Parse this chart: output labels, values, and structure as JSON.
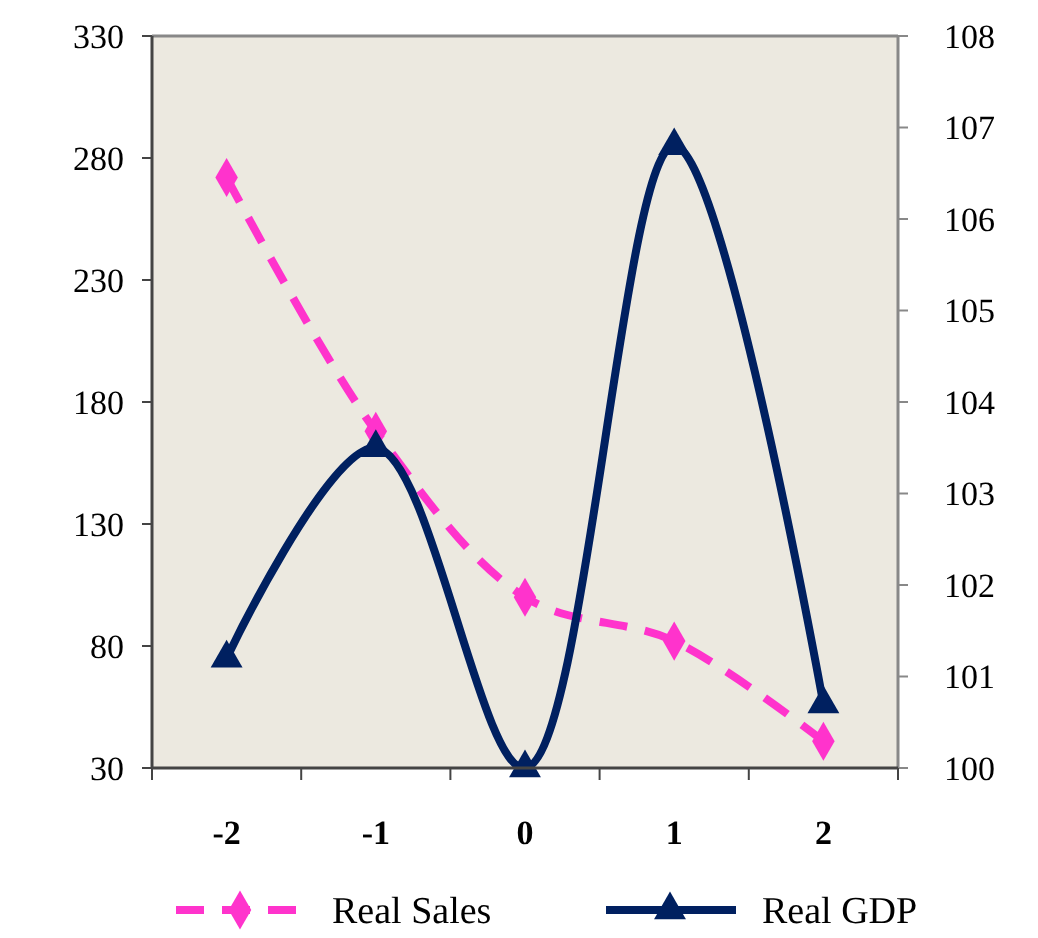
{
  "chart_data": {
    "type": "line",
    "categories": [
      "-2",
      "-1",
      "0",
      "1",
      "2"
    ],
    "series": [
      {
        "name": "Real Sales",
        "color": "#ff33cc",
        "values": [
          272,
          168,
          100,
          82,
          41
        ],
        "marker": "diamond",
        "line_style": "dashed"
      },
      {
        "name": "Real GDP",
        "color": "#002060",
        "values": [
          101.2,
          103.5,
          100,
          106.8,
          100.7
        ],
        "axis": "y2",
        "marker": "triangle",
        "line_style": "solid"
      }
    ],
    "ylim": [
      30,
      330
    ],
    "yticks": [
      30,
      80,
      130,
      180,
      230,
      280,
      330
    ],
    "y2lim": [
      100,
      108
    ],
    "y2ticks": [
      100,
      101,
      102,
      103,
      104,
      105,
      106,
      107,
      108
    ],
    "grid": false,
    "legend": "bottom"
  }
}
